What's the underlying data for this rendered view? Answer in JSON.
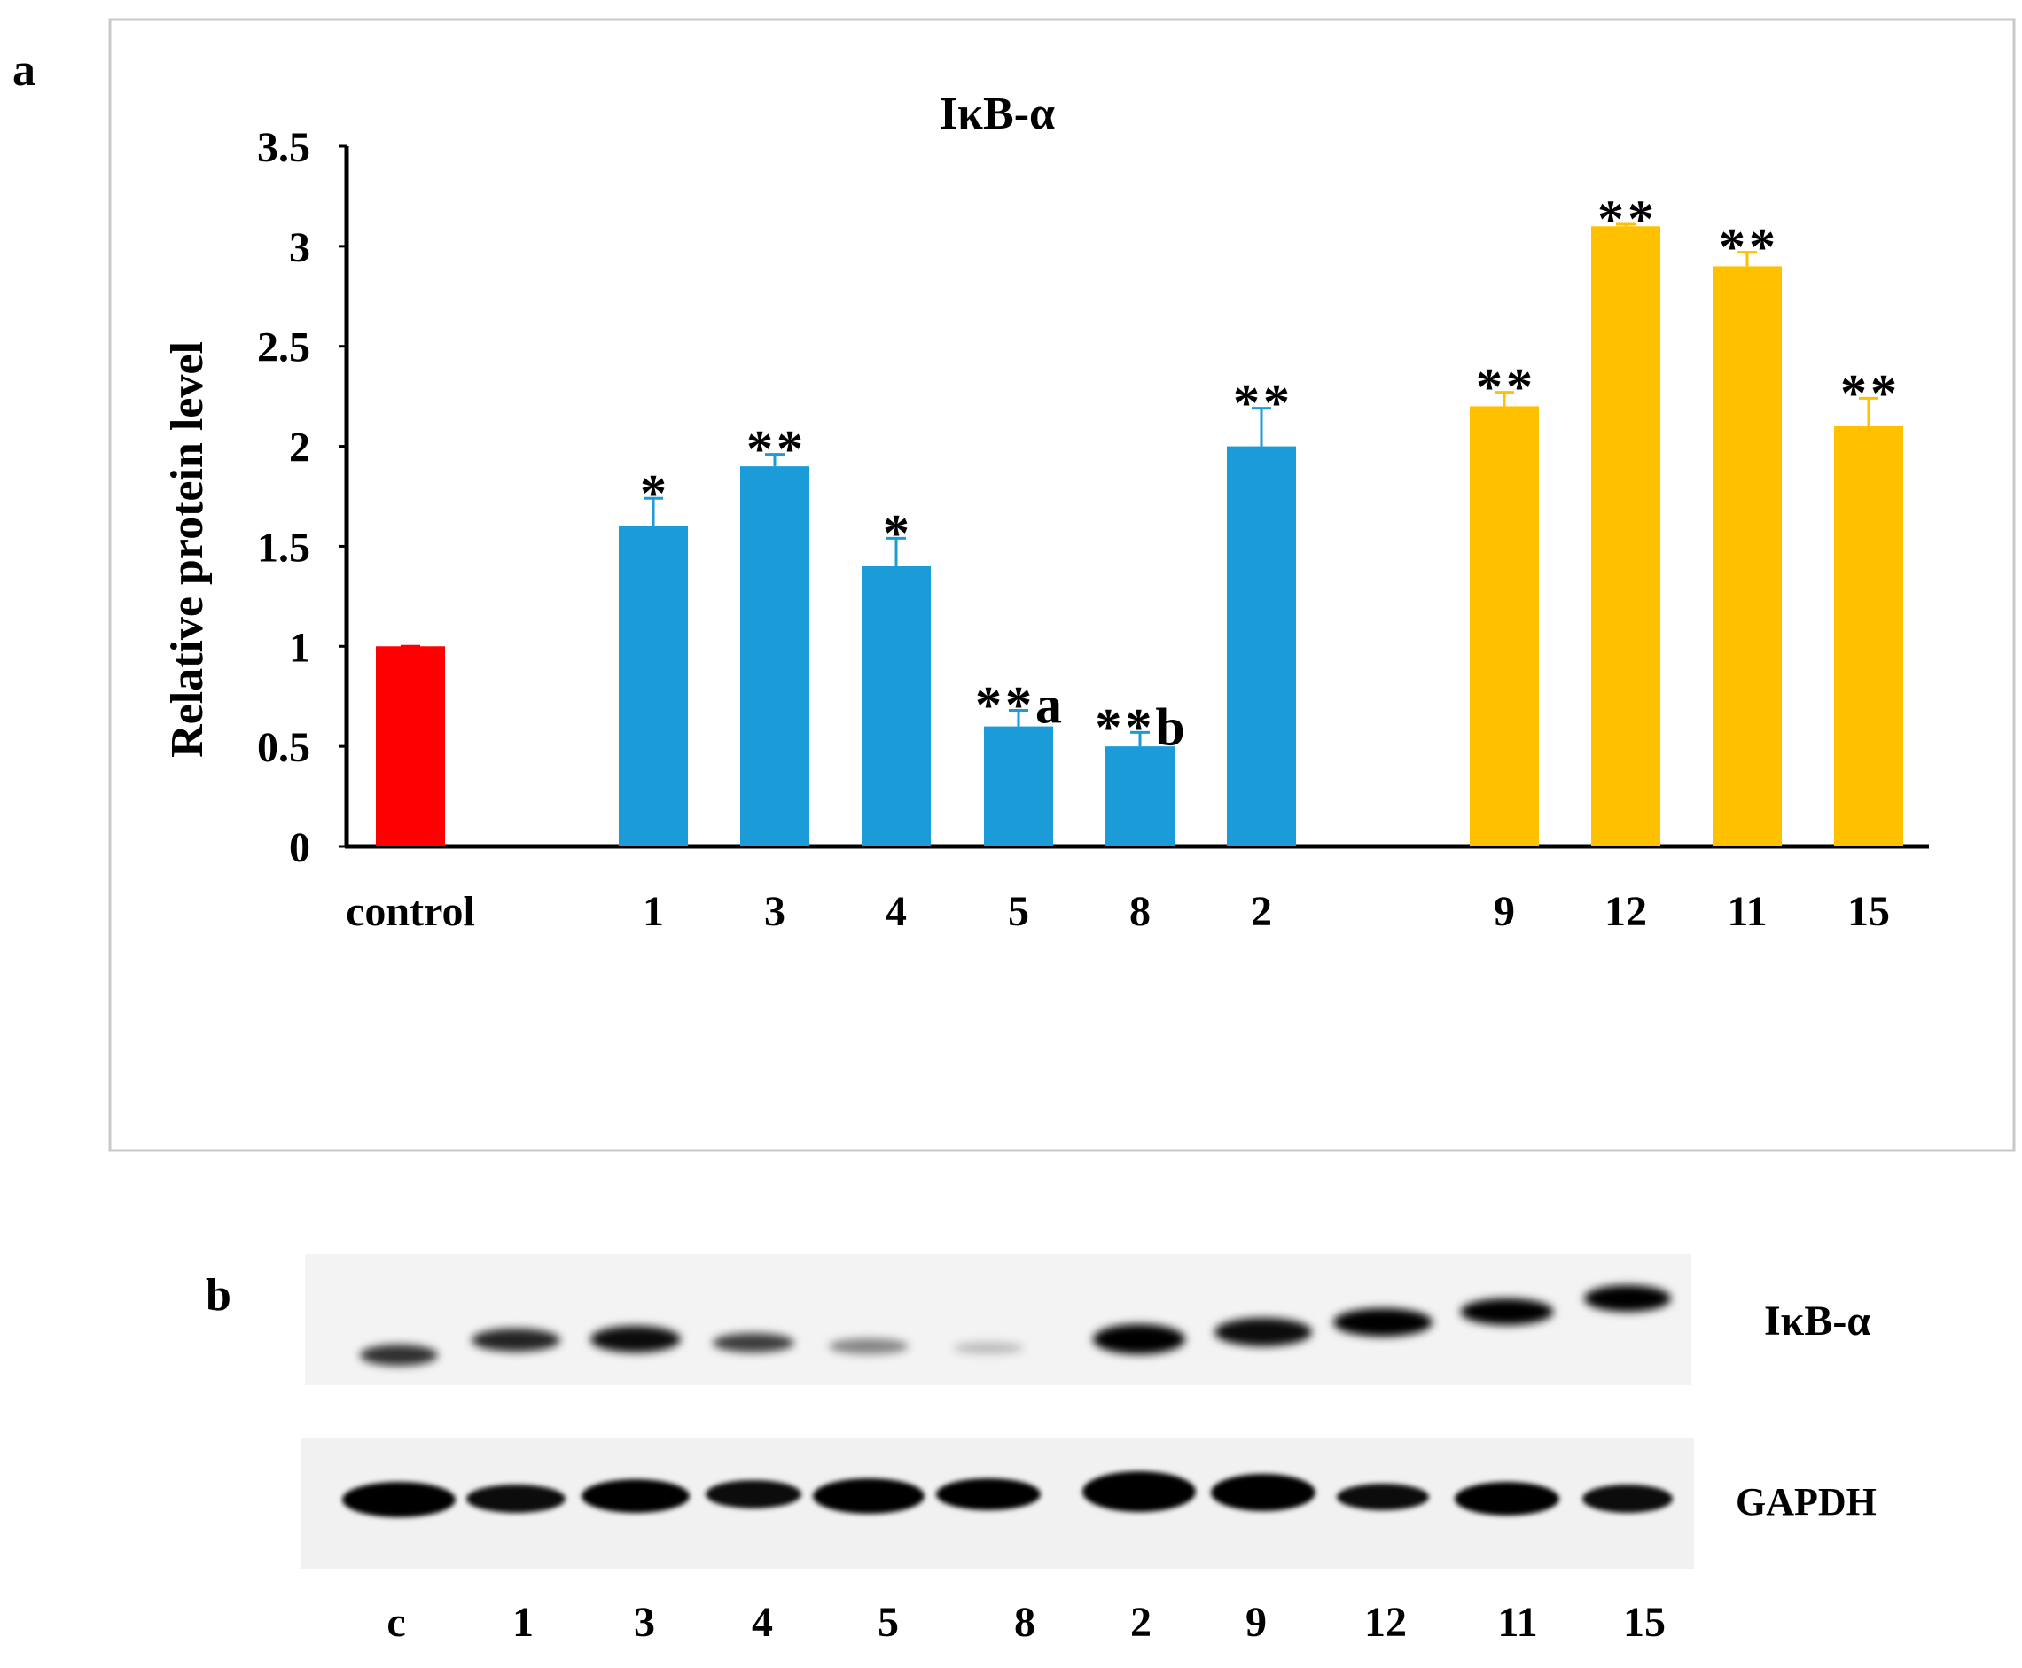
{
  "panel_a": {
    "label": "a",
    "chart_data": {
      "type": "bar",
      "title": "IκB-α",
      "ylabel": "Relative protein level",
      "xlabel": "",
      "ylim": [
        0,
        3.5
      ],
      "yticks": [
        "0",
        "0.5",
        "1",
        "1.5",
        "2",
        "2.5",
        "3",
        "3.5"
      ],
      "grid": false,
      "categories": [
        "control",
        "1",
        "3",
        "4",
        "5",
        "8",
        "2",
        "9",
        "12",
        "11",
        "15"
      ],
      "values": [
        1.0,
        1.6,
        1.9,
        1.4,
        0.6,
        0.5,
        2.0,
        2.2,
        3.1,
        2.9,
        2.1
      ],
      "errors": [
        0.0,
        0.14,
        0.06,
        0.14,
        0.08,
        0.07,
        0.19,
        0.07,
        0.01,
        0.07,
        0.14
      ],
      "significance": [
        "",
        "*",
        "**",
        "*",
        "**a",
        "**b",
        "**",
        "**",
        "**",
        "**",
        "**"
      ],
      "colors": [
        "#ff0000",
        "#1b9bd7",
        "#1b9bd7",
        "#1b9bd7",
        "#1b9bd7",
        "#1b9bd7",
        "#1b9bd7",
        "#ffc000",
        "#ffc000",
        "#ffc000",
        "#ffc000"
      ]
    }
  },
  "panel_b": {
    "label": "b",
    "blot_labels": [
      "IκB-α",
      "GAPDH"
    ],
    "lane_labels": [
      "c",
      "1",
      "3",
      "4",
      "5",
      "8",
      "2",
      "9",
      "12",
      "11",
      "15"
    ],
    "ikb_band_intensity": [
      0.8,
      0.85,
      0.95,
      0.75,
      0.45,
      0.22,
      1.0,
      0.95,
      1.0,
      1.0,
      1.0
    ],
    "gapdh_band_intensity": [
      1.0,
      0.95,
      1.0,
      0.95,
      1.0,
      1.0,
      1.0,
      1.0,
      0.95,
      1.0,
      0.95
    ]
  }
}
